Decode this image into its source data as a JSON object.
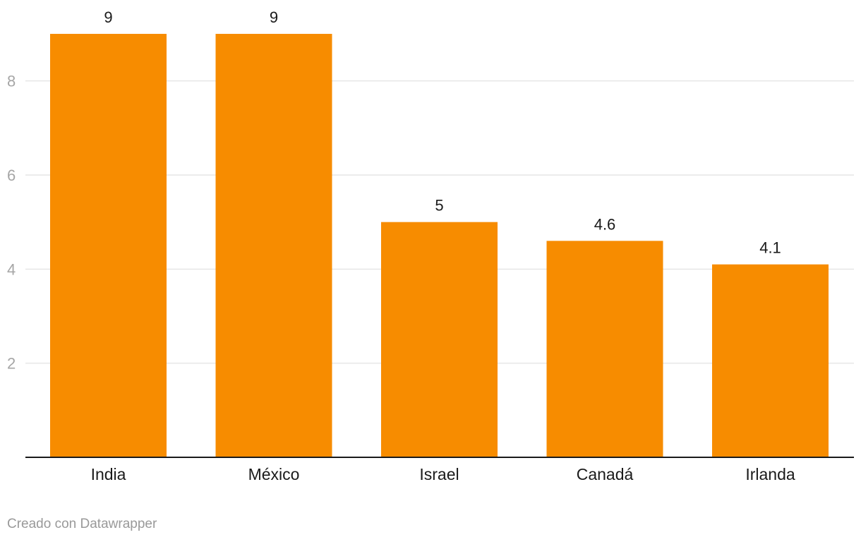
{
  "chart_data": {
    "type": "bar",
    "categories": [
      "India",
      "México",
      "Israel",
      "Canadá",
      "Irlanda"
    ],
    "values": [
      9,
      9,
      5,
      4.6,
      4.1
    ],
    "value_labels": [
      "9",
      "9",
      "5",
      "4.6",
      "4.1"
    ],
    "title": "",
    "xlabel": "",
    "ylabel": "",
    "ylim": [
      0,
      9
    ],
    "yticks": [
      2,
      4,
      6,
      8
    ],
    "ytick_labels": [
      "2",
      "4",
      "6",
      "8"
    ],
    "grid": true,
    "legend": "none",
    "colors": {
      "bar": "#f78c00"
    }
  },
  "footer": {
    "credit": "Creado con Datawrapper"
  }
}
